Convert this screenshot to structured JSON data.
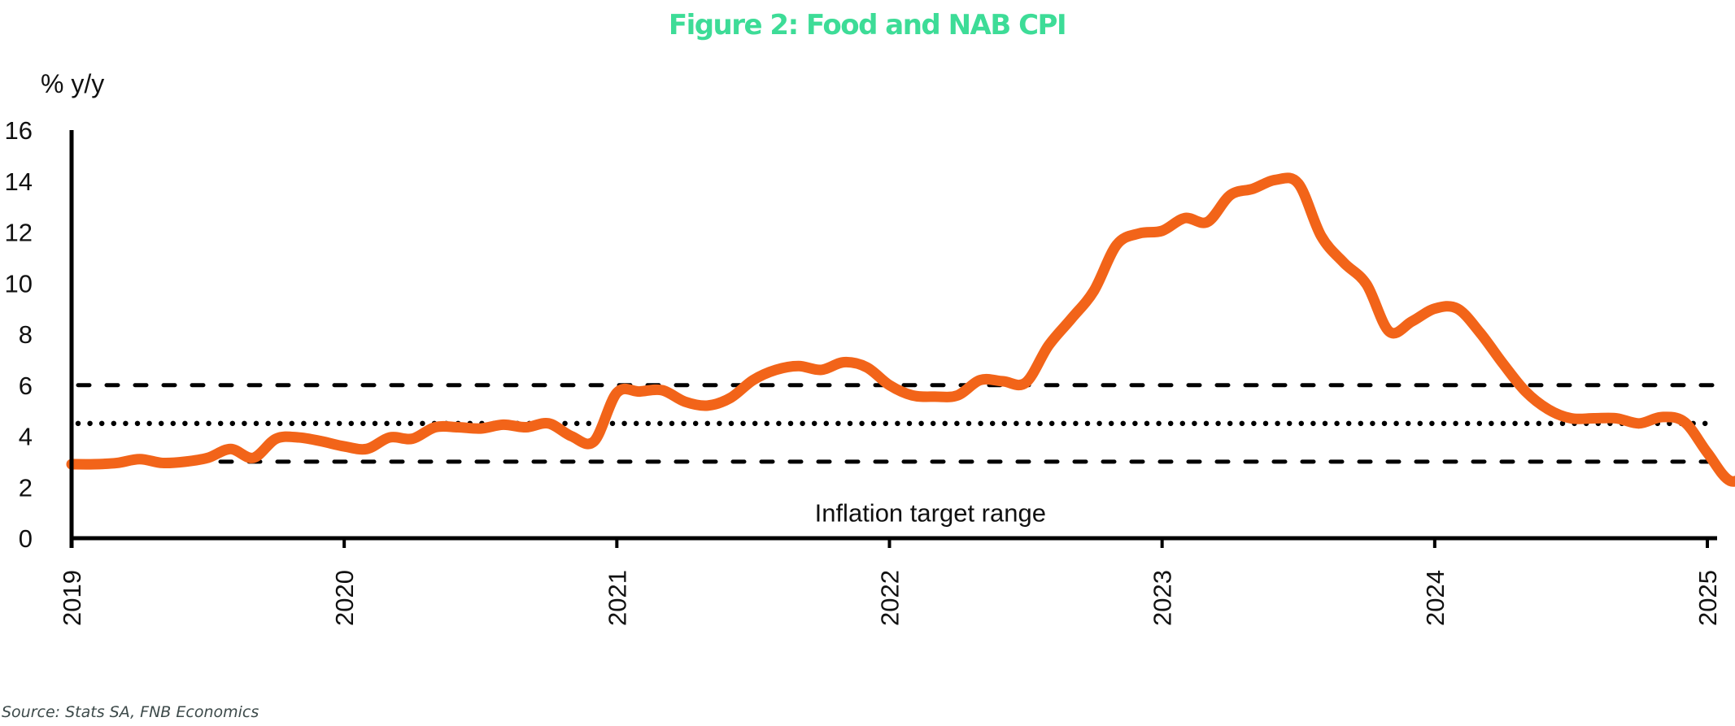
{
  "chart_data": {
    "type": "line",
    "title": "Figure 2: Food and NAB CPI",
    "ylabel": "% y/y",
    "xlabel": "",
    "ylim": [
      0,
      16
    ],
    "xlim": [
      2019.0,
      2025.08
    ],
    "yticks": [
      0,
      2,
      4,
      6,
      8,
      10,
      12,
      14,
      16
    ],
    "xticks": [
      2019,
      2020,
      2021,
      2022,
      2023,
      2024,
      2025
    ],
    "ytick_labels": [
      "0",
      "2",
      "4",
      "6",
      "8",
      "10",
      "12",
      "14",
      "16"
    ],
    "xtick_labels": [
      "2019",
      "2020",
      "2021",
      "2022",
      "2023",
      "2024",
      "2025"
    ],
    "grid": false,
    "legend": null,
    "colors": {
      "title": "#3ddc97",
      "series": "#f26419",
      "reference": "#000000",
      "axis": "#000000",
      "source": "#3d4a4a"
    },
    "reference_lines": [
      {
        "name": "target-upper",
        "y": 6.0,
        "style": "dashed"
      },
      {
        "name": "target-midpoint",
        "y": 4.5,
        "style": "dotted"
      },
      {
        "name": "target-lower",
        "y": 3.0,
        "style": "dashed"
      }
    ],
    "annotations": [
      {
        "text": "Inflation target range",
        "x": 2022.15,
        "y": 1.0
      }
    ],
    "series": [
      {
        "name": "Food and NAB CPI",
        "frequency": "monthly",
        "start": "2019-01",
        "values": [
          2.9,
          2.9,
          2.95,
          3.1,
          2.95,
          3.0,
          3.15,
          3.5,
          3.15,
          3.9,
          3.95,
          3.8,
          3.6,
          3.5,
          3.95,
          3.9,
          4.35,
          4.35,
          4.3,
          4.45,
          4.35,
          4.5,
          4.0,
          3.8,
          5.7,
          5.75,
          5.8,
          5.35,
          5.2,
          5.5,
          6.2,
          6.6,
          6.75,
          6.6,
          6.9,
          6.7,
          6.0,
          5.6,
          5.55,
          5.6,
          6.2,
          6.15,
          6.1,
          7.55,
          8.6,
          9.7,
          11.5,
          11.95,
          12.05,
          12.55,
          12.4,
          13.45,
          13.7,
          14.05,
          13.9,
          11.85,
          10.8,
          9.95,
          8.1,
          8.5,
          9.0,
          9.0,
          8.05,
          6.85,
          5.75,
          5.05,
          4.7,
          4.7,
          4.7,
          4.5,
          4.75,
          4.55,
          3.35,
          2.25,
          2.55,
          2.35
        ]
      }
    ],
    "source_note": "Source: Stats SA, FNB Economics"
  }
}
